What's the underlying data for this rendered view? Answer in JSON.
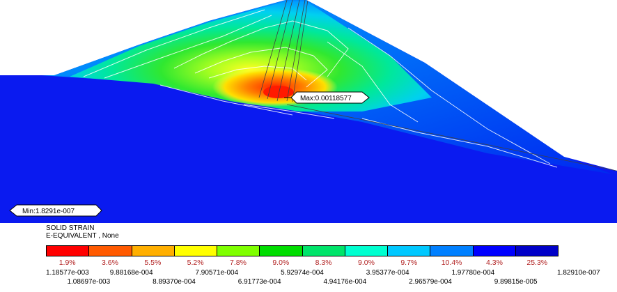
{
  "labels": {
    "max": "Max:0.00118577",
    "min": "Min:1.8291e-007"
  },
  "legend": {
    "line1": "SOLID STRAIN",
    "line2": "E-EQUIVALENT , None",
    "colors": [
      "#ff0000",
      "#ff5a00",
      "#ffaf00",
      "#ffff00",
      "#7fff00",
      "#00dd00",
      "#00e46a",
      "#00ffd0",
      "#00c8ff",
      "#0080ff",
      "#0000ff",
      "#0000c8"
    ],
    "percentages": [
      "1.9%",
      "3.6%",
      "5.5%",
      "5.2%",
      "7.8%",
      "9.0%",
      "8.3%",
      "9.0%",
      "9.7%",
      "10.4%",
      "4.3%",
      "25.3%"
    ],
    "ticks_top": [
      "1.18577e-003",
      "9.88168e-004",
      "7.90571e-004",
      "5.92974e-004",
      "3.95377e-004",
      "1.97780e-004",
      "1.82910e-007"
    ],
    "ticks_bottom": [
      "1.08697e-003",
      "8.89370e-004",
      "6.91773e-004",
      "4.94176e-004",
      "2.96579e-004",
      "9.89815e-005"
    ]
  }
}
